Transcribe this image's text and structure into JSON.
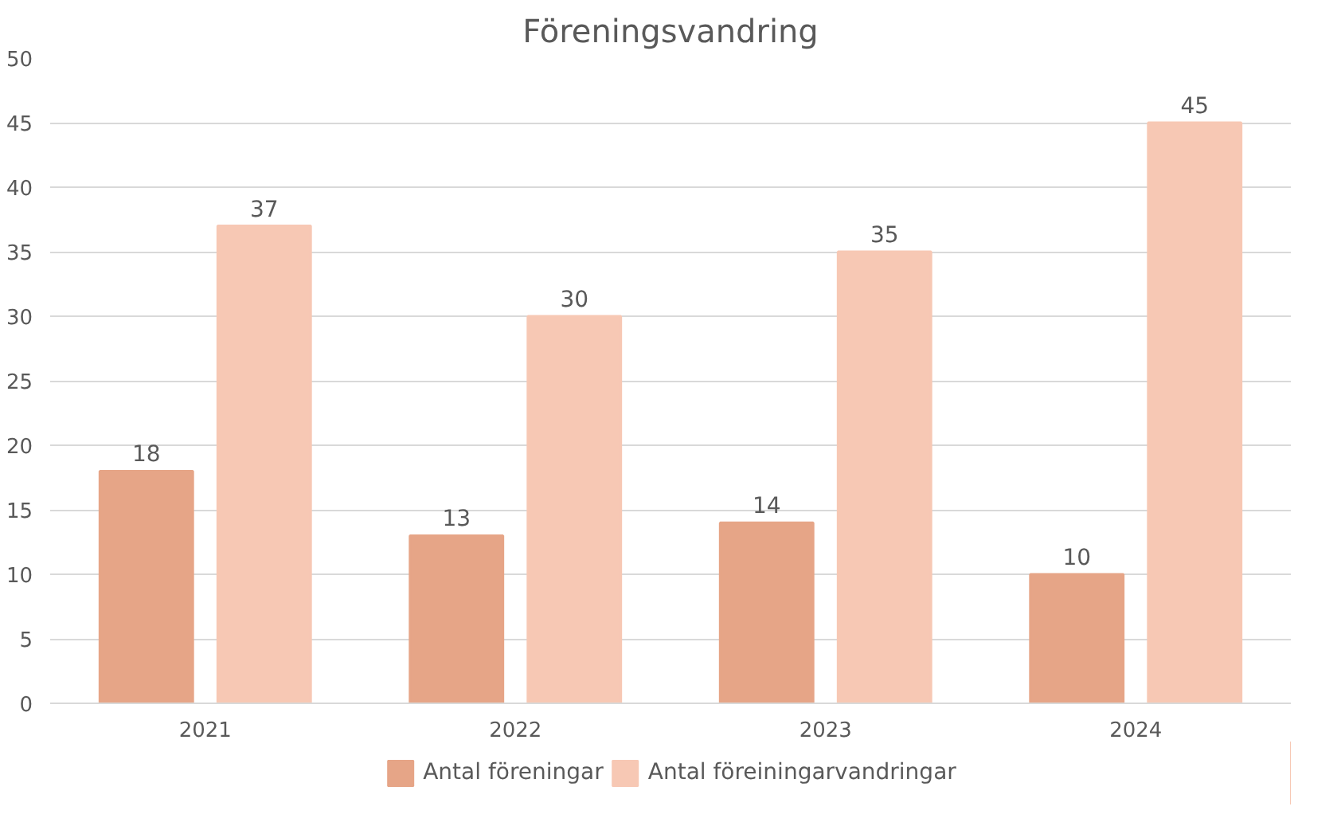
{
  "chart_data": {
    "type": "bar",
    "title": "Föreningsvandring",
    "categories": [
      "2021",
      "2022",
      "2023",
      "2024"
    ],
    "series": [
      {
        "name": "Antal föreningar",
        "color": "#e6a587",
        "values": [
          18,
          13,
          14,
          10
        ]
      },
      {
        "name": "Antal föreiningarvandringar",
        "color": "#f7c8b4",
        "values": [
          37,
          30,
          35,
          45
        ]
      }
    ],
    "ylim": [
      0,
      50
    ],
    "yticks": [
      0,
      5,
      10,
      15,
      20,
      25,
      30,
      35,
      40,
      45,
      50
    ],
    "grid": "y",
    "legend": "bottom",
    "data_labels": true
  }
}
